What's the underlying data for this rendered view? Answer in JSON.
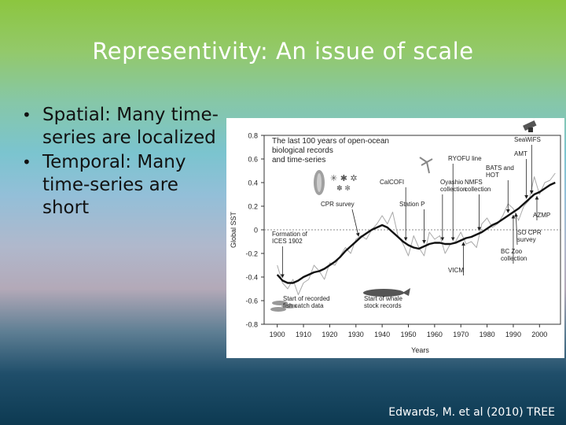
{
  "slide": {
    "title": "Representivity: An issue of scale",
    "bullets": [
      "Spatial: Many time-series are localized",
      "Temporal: Many time-series are short"
    ],
    "citation": "Edwards, M. et al (2010) TREE"
  },
  "chart_data": {
    "type": "line",
    "inset_title": "The last 100 years of open-ocean biological records and time-series",
    "xlabel": "Years",
    "ylabel": "Global SST",
    "xlim": [
      1895,
      2008
    ],
    "ylim": [
      -0.8,
      0.8
    ],
    "x_ticks": [
      1900,
      1910,
      1920,
      1930,
      1940,
      1950,
      1960,
      1970,
      1980,
      1990,
      2000
    ],
    "y_ticks": [
      -0.8,
      -0.6,
      -0.4,
      -0.2,
      0,
      0.2,
      0.4,
      0.6,
      0.8
    ],
    "y_tick_labels": [
      "-0.8",
      "-0.6",
      "-0.4",
      "-0.2",
      "0",
      "0.2",
      "0.4",
      "0.6",
      "0.8"
    ],
    "zero_line": "dotted",
    "series": [
      {
        "role": "annual",
        "color": "#a9a9a9",
        "x": [
          1900,
          1902,
          1904,
          1906,
          1908,
          1910,
          1912,
          1914,
          1916,
          1918,
          1920,
          1922,
          1924,
          1926,
          1928,
          1930,
          1932,
          1934,
          1936,
          1938,
          1940,
          1942,
          1944,
          1946,
          1948,
          1950,
          1952,
          1954,
          1956,
          1958,
          1960,
          1962,
          1964,
          1966,
          1968,
          1970,
          1972,
          1974,
          1976,
          1978,
          1980,
          1982,
          1984,
          1986,
          1988,
          1990,
          1992,
          1994,
          1996,
          1998,
          2000,
          2002,
          2004,
          2006
        ],
        "values": [
          -0.3,
          -0.45,
          -0.5,
          -0.42,
          -0.55,
          -0.45,
          -0.42,
          -0.3,
          -0.35,
          -0.42,
          -0.28,
          -0.3,
          -0.22,
          -0.15,
          -0.2,
          -0.08,
          -0.05,
          -0.08,
          0.0,
          0.05,
          0.12,
          0.05,
          0.15,
          -0.05,
          -0.12,
          -0.22,
          -0.05,
          -0.15,
          -0.22,
          -0.02,
          -0.08,
          -0.05,
          -0.2,
          -0.12,
          -0.1,
          -0.02,
          -0.12,
          -0.1,
          -0.15,
          0.05,
          0.1,
          0.02,
          0.05,
          0.12,
          0.22,
          0.18,
          0.08,
          0.2,
          0.25,
          0.45,
          0.3,
          0.4,
          0.42,
          0.48
        ]
      },
      {
        "role": "smoothed",
        "color": "#111111",
        "x": [
          1900,
          1902,
          1904,
          1906,
          1908,
          1910,
          1912,
          1914,
          1916,
          1918,
          1920,
          1922,
          1924,
          1926,
          1928,
          1930,
          1932,
          1934,
          1936,
          1938,
          1940,
          1942,
          1944,
          1946,
          1948,
          1950,
          1952,
          1954,
          1956,
          1958,
          1960,
          1962,
          1964,
          1966,
          1968,
          1970,
          1972,
          1974,
          1976,
          1978,
          1980,
          1982,
          1984,
          1986,
          1988,
          1990,
          1992,
          1994,
          1996,
          1998,
          2000,
          2002,
          2004,
          2006
        ],
        "values": [
          -0.38,
          -0.43,
          -0.45,
          -0.45,
          -0.43,
          -0.4,
          -0.38,
          -0.36,
          -0.35,
          -0.33,
          -0.3,
          -0.27,
          -0.23,
          -0.18,
          -0.14,
          -0.1,
          -0.06,
          -0.03,
          0.0,
          0.02,
          0.04,
          0.02,
          -0.02,
          -0.06,
          -0.1,
          -0.13,
          -0.15,
          -0.16,
          -0.14,
          -0.12,
          -0.11,
          -0.11,
          -0.12,
          -0.12,
          -0.11,
          -0.09,
          -0.07,
          -0.06,
          -0.04,
          -0.02,
          0.01,
          0.04,
          0.06,
          0.09,
          0.12,
          0.15,
          0.18,
          0.22,
          0.26,
          0.3,
          0.32,
          0.35,
          0.38,
          0.4
        ]
      }
    ],
    "annotations": [
      {
        "label": "CPR survey",
        "x": 1931
      },
      {
        "label": "Formation of ICES 1902",
        "x": 1902
      },
      {
        "label": "Start of recorded fish catch data",
        "x": 1903
      },
      {
        "label": "Start of whale stock records",
        "x": 1945
      },
      {
        "label": "CalCOFI",
        "x": 1949
      },
      {
        "label": "Station P",
        "x": 1956
      },
      {
        "label": "RYOFU line",
        "x": 1967
      },
      {
        "label": "Oyashio collection",
        "x": 1963
      },
      {
        "label": "VICM",
        "x": 1971
      },
      {
        "label": "NMFS collection",
        "x": 1977
      },
      {
        "label": "BATS and HOT",
        "x": 1988
      },
      {
        "label": "BC Zoo collection",
        "x": 1990
      },
      {
        "label": "SO CPR survey",
        "x": 1991
      },
      {
        "label": "AMT",
        "x": 1995
      },
      {
        "label": "SeaWiFS",
        "x": 1997
      },
      {
        "label": "AZMP",
        "x": 1999
      }
    ]
  }
}
